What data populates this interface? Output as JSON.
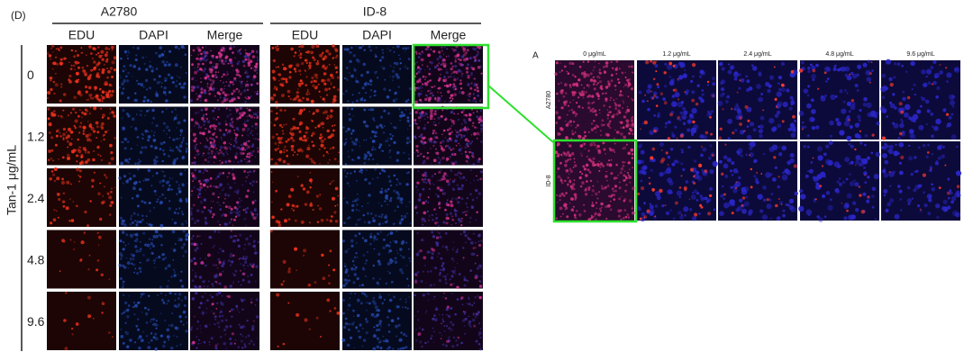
{
  "left_panel": {
    "label": "(D)",
    "groups": [
      "A2780",
      "ID-8"
    ],
    "channels": [
      "EDU",
      "DAPI",
      "Merge"
    ],
    "doses": [
      "0",
      "1.2",
      "2.4",
      "4.8",
      "9.6"
    ],
    "axis_label": "Tan-1 μg/mL"
  },
  "right_panel": {
    "label": "A",
    "columns": [
      "0 μg/mL",
      "1.2 μg/mL",
      "2.4 μg/mL",
      "4.8 μg/mL",
      "9.6 μg/mL"
    ],
    "rows": [
      "A2780",
      "ID-8"
    ]
  }
}
